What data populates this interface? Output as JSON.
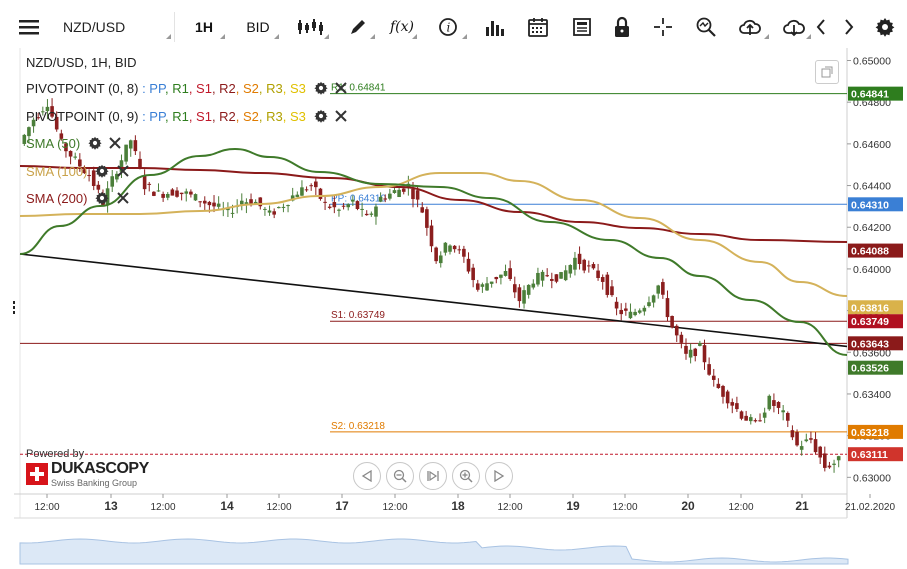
{
  "toolbar": {
    "symbol": "NZD/USD",
    "timeframe": "1H",
    "price_side": "BID"
  },
  "legend": {
    "title": "NZD/USD, 1H, BID",
    "pivot1": {
      "name": "PIVOTPOINT (0, 8)",
      "parts": [
        ": PP",
        ", R1",
        ", S1",
        ", R2",
        ", S2",
        ", R3",
        ", S3"
      ]
    },
    "pivot2": {
      "name": "PIVOTPOINT (0, 9)",
      "parts": [
        ": PP",
        ", R1",
        ", S1",
        ", R2",
        ", S2",
        ", R3",
        ", S3"
      ]
    },
    "pivot_colors": [
      "#3a7fd5",
      "#2e7d1e",
      "#c0182a",
      "#8b1a1a",
      "#e07b00",
      "#b0a000",
      "#e0c000"
    ],
    "sma50": "SMA (50)",
    "sma100": "SMA (100)",
    "sma200": "SMA (200)"
  },
  "colors": {
    "up": "#4b7f3a",
    "down": "#8b1e1e",
    "sma50": "#3f7a2a",
    "sma100": "#d4b25a",
    "sma200": "#8b1a1a",
    "trend": "#111111"
  },
  "chart_data": {
    "type": "candlestick",
    "symbol": "NZD/USD",
    "timeframe": "1H",
    "ylim": [
      0.6292,
      0.6506
    ],
    "y_ticks": [
      "0.65000",
      "0.64800",
      "0.64600",
      "0.64400",
      "0.64200",
      "0.64000",
      "0.63800",
      "0.63600",
      "0.63400",
      "0.63200",
      "0.63000"
    ],
    "x_labels": [
      "12:00",
      "13",
      "12:00",
      "14",
      "12:00",
      "17",
      "12:00",
      "18",
      "12:00",
      "19",
      "12:00",
      "20",
      "12:00",
      "21",
      "21.02.2020"
    ],
    "close_path": [
      0.646,
      0.6472,
      0.648,
      0.646,
      0.6452,
      0.6445,
      0.6432,
      0.6448,
      0.6462,
      0.644,
      0.6436,
      0.6437,
      0.6436,
      0.6433,
      0.643,
      0.6427,
      0.6433,
      0.6432,
      0.6426,
      0.6431,
      0.6437,
      0.644,
      0.6431,
      0.6428,
      0.6432,
      0.6424,
      0.6434,
      0.6437,
      0.644,
      0.6428,
      0.6405,
      0.6413,
      0.6405,
      0.639,
      0.6395,
      0.6398,
      0.6385,
      0.6395,
      0.6397,
      0.6396,
      0.6405,
      0.64,
      0.6395,
      0.638,
      0.6378,
      0.6383,
      0.6392,
      0.6372,
      0.6358,
      0.6362,
      0.6345,
      0.6338,
      0.633,
      0.6325,
      0.6337,
      0.633,
      0.6315,
      0.6318,
      0.6305,
      0.6308
    ],
    "levels": [
      {
        "label": "R1: 0.64841",
        "value": 0.64841,
        "color": "#2e7d1e",
        "axis_label": "0.64841"
      },
      {
        "label": "PP: 0.64310",
        "value": 0.6431,
        "color": "#3a7fd5",
        "axis_label": "0.64310"
      },
      {
        "label": "S1: 0.63749",
        "value": 0.63749,
        "color": "#8b1a1a",
        "axis_label": "0.63749"
      },
      {
        "label": "",
        "value": 0.63643,
        "color": "#8b1a1a",
        "axis_label": "0.63643"
      },
      {
        "label": "S2: 0.63218",
        "value": 0.63218,
        "color": "#e07b00",
        "axis_label": "0.63218"
      },
      {
        "label": "",
        "value": 0.63111,
        "color": "#c0182a",
        "axis_label": "0.63111",
        "dashed": true
      }
    ],
    "sma_last": {
      "sma200": "0.64088",
      "sma100": "0.63816",
      "sma50": "0.63526"
    }
  },
  "brand": {
    "powered": "Powered by",
    "name": "DUKASCOPY",
    "sub": "Swiss Banking Group"
  }
}
